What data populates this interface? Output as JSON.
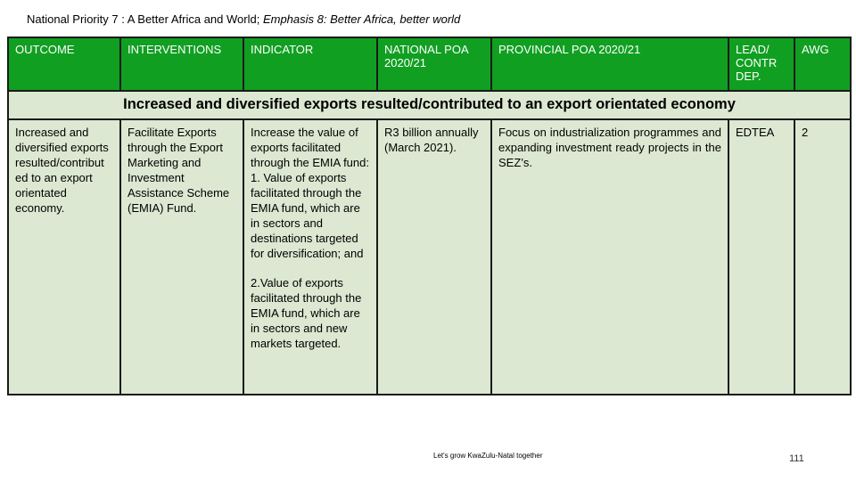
{
  "title": {
    "prefix": "National Priority 7 : A Better Africa and World; ",
    "emphasis": "Emphasis 8: Better Africa, better world"
  },
  "headers": {
    "outcome": "OUTCOME",
    "interventions": "INTERVENTIONS",
    "indicator": "INDICATOR",
    "national": "NATIONAL POA 2020/21",
    "provincial": "PROVINCIAL POA 2020/21",
    "lead": "LEAD/ CONTR DEP.",
    "awg": "AWG"
  },
  "band": "Increased and diversified exports resulted/contributed to an export orientated economy",
  "row": {
    "outcome": "Increased and diversified exports resulted/contribut ed to an export orientated economy.",
    "interventions": "Facilitate Exports through the Export Marketing and Investment Assistance Scheme (EMIA) Fund.",
    "indicator_1": "Increase the value of exports facilitated through the EMIA fund: 1. Value of exports facilitated through the EMIA fund, which are in sectors and destinations targeted for diversification; and",
    "indicator_2": "2.Value of exports facilitated through the EMIA fund, which are in sectors and new markets targeted.",
    "national": "R3 billion annually (March 2021).",
    "provincial": "Focus on industrialization programmes and expanding investment ready projects in the SEZ’s.",
    "lead": "EDTEA",
    "awg": "2"
  },
  "footer": "Let's grow KwaZulu-Natal together",
  "page_number": "111"
}
